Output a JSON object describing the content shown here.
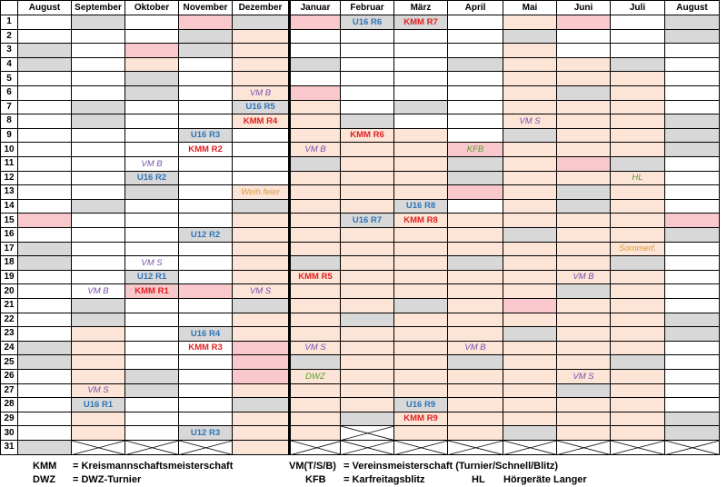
{
  "months": [
    "August",
    "September",
    "Oktober",
    "November",
    "Dezember",
    "Januar",
    "Februar",
    "März",
    "April",
    "Mai",
    "Juni",
    "Juli",
    "August"
  ],
  "colors": {
    "weekend": "#d8d8d8",
    "holiday_peach": "#fce4d6",
    "holiday_pink": "#f8c8cc",
    "blue_event": "#2e75b6",
    "red_event": "#e02020",
    "purple_event": "#7a4fb0",
    "green_event": "#5aa02c",
    "orange_event": "#d99a3a"
  },
  "shading": {
    "0": {
      "g": [
        3,
        4,
        17,
        18,
        24,
        25,
        31
      ],
      "p": [],
      "k": [
        15
      ]
    },
    "1": {
      "g": [
        1,
        7,
        8,
        14,
        21,
        22,
        28
      ],
      "p": [
        21,
        22,
        23,
        24,
        25,
        26,
        27,
        28,
        29,
        30
      ],
      "k": []
    },
    "2": {
      "g": [
        5,
        6,
        12,
        13,
        19,
        26,
        27
      ],
      "p": [
        4,
        5
      ],
      "k": [
        3,
        20
      ]
    },
    "3": {
      "g": [
        2,
        3,
        9,
        16,
        23,
        30
      ],
      "p": [
        30
      ],
      "k": [
        1,
        20
      ]
    },
    "4": {
      "g": [
        1,
        7,
        14,
        21,
        28
      ],
      "p": [
        1,
        2,
        3,
        4,
        5,
        6,
        7,
        8,
        13,
        14,
        15,
        16,
        17,
        18,
        19,
        20,
        21,
        22,
        23,
        27,
        28,
        29,
        30,
        31
      ],
      "k": [
        24,
        25,
        26
      ]
    },
    "5": {
      "g": [
        4,
        11,
        18,
        25
      ],
      "p": [
        6,
        7,
        8,
        9,
        10,
        11,
        12,
        13,
        14,
        15,
        16,
        17,
        18,
        19,
        20,
        21,
        22,
        23,
        24,
        25,
        26,
        27,
        28,
        29,
        30,
        31
      ],
      "k": [
        1,
        6
      ]
    },
    "6": {
      "g": [
        1,
        8,
        15,
        22,
        29
      ],
      "p": [
        9,
        10,
        11,
        12,
        13,
        14,
        15,
        16,
        17,
        18,
        19,
        20,
        21,
        22,
        23,
        24,
        25,
        26,
        27,
        28,
        29,
        30,
        31
      ],
      "k": []
    },
    "7": {
      "g": [
        1,
        7,
        14,
        21,
        28
      ],
      "p": [
        9,
        10,
        11,
        12,
        13,
        14,
        15,
        16,
        17,
        18,
        19,
        20,
        21,
        22,
        23,
        24,
        25,
        26,
        27,
        28,
        29,
        30,
        31
      ],
      "k": []
    },
    "8": {
      "g": [
        4,
        11,
        12,
        18,
        25
      ],
      "p": [
        15,
        16,
        17,
        18,
        19,
        20,
        21,
        22,
        23,
        24,
        25,
        26,
        27,
        28,
        29,
        30,
        31
      ],
      "k": [
        10,
        13
      ]
    },
    "9": {
      "g": [
        2,
        9,
        16,
        23,
        30
      ],
      "p": [
        1,
        2,
        3,
        4,
        5,
        6,
        7,
        8,
        9,
        10,
        11,
        12,
        13,
        14,
        15,
        16,
        17,
        18,
        19,
        20,
        21,
        22,
        23,
        24,
        25,
        26,
        27,
        28,
        29,
        30,
        31
      ],
      "k": [
        21
      ]
    },
    "10": {
      "g": [
        6,
        13,
        14,
        20,
        27
      ],
      "p": [
        4,
        5,
        6,
        7,
        8,
        9,
        10,
        11,
        12,
        13,
        14,
        15,
        16,
        17,
        18,
        19,
        20,
        21,
        22,
        23,
        24,
        25,
        26,
        27,
        28,
        29,
        30,
        31
      ],
      "k": [
        1,
        11
      ]
    },
    "11": {
      "g": [
        4,
        11,
        18,
        25
      ],
      "p": [
        4,
        5,
        6,
        7,
        8,
        9,
        10,
        11,
        12,
        13,
        14,
        15,
        16,
        17,
        18,
        19,
        20,
        21,
        22,
        23,
        24,
        25,
        26,
        27,
        28,
        29,
        30,
        31
      ],
      "k": []
    },
    "12": {
      "g": [
        1,
        2,
        8,
        9,
        10,
        16,
        22,
        23,
        29,
        30
      ],
      "p": [],
      "k": [
        15
      ]
    }
  },
  "invalid_cells": [
    {
      "month": 1,
      "day": 31
    },
    {
      "month": 2,
      "day": 31
    },
    {
      "month": 3,
      "day": 31
    },
    {
      "month": 5,
      "day": 31
    },
    {
      "month": 6,
      "day": 30
    },
    {
      "month": 6,
      "day": 31
    },
    {
      "month": 7,
      "day": 31
    },
    {
      "month": 8,
      "day": 31
    },
    {
      "month": 9,
      "day": 31
    },
    {
      "month": 10,
      "day": 31
    },
    {
      "month": 11,
      "day": 31
    },
    {
      "month": 12,
      "day": 31
    }
  ],
  "events": [
    {
      "month": 1,
      "day": 20,
      "text": "VM B",
      "color": "purple_event",
      "style": "ital"
    },
    {
      "month": 1,
      "day": 27,
      "text": "VM S",
      "color": "purple_event",
      "style": "ital"
    },
    {
      "month": 1,
      "day": 28,
      "text": "U16 R1",
      "color": "blue_event",
      "style": "bold"
    },
    {
      "month": 2,
      "day": 11,
      "text": "VM B",
      "color": "purple_event",
      "style": "ital"
    },
    {
      "month": 2,
      "day": 12,
      "text": "U16 R2",
      "color": "blue_event",
      "style": "bold"
    },
    {
      "month": 2,
      "day": 18,
      "text": "VM S",
      "color": "purple_event",
      "style": "ital"
    },
    {
      "month": 2,
      "day": 19,
      "text": "U12 R1",
      "color": "blue_event",
      "style": "bold"
    },
    {
      "month": 2,
      "day": 20,
      "text": "KMM R1",
      "color": "red_event",
      "style": "bold"
    },
    {
      "month": 3,
      "day": 9,
      "text": "U16 R3",
      "color": "blue_event",
      "style": "bold"
    },
    {
      "month": 3,
      "day": 10,
      "text": "KMM R2",
      "color": "red_event",
      "style": "bold"
    },
    {
      "month": 3,
      "day": 16,
      "text": "U12 R2",
      "color": "blue_event",
      "style": "bold"
    },
    {
      "month": 3,
      "day": 23,
      "text": "U16 R4",
      "color": "blue_event",
      "style": "bold"
    },
    {
      "month": 3,
      "day": 24,
      "text": "KMM R3",
      "color": "red_event",
      "style": "bold"
    },
    {
      "month": 3,
      "day": 30,
      "text": "U12 R3",
      "color": "blue_event",
      "style": "bold"
    },
    {
      "month": 4,
      "day": 6,
      "text": "VM B",
      "color": "purple_event",
      "style": "ital"
    },
    {
      "month": 4,
      "day": 7,
      "text": "U16 R5",
      "color": "blue_event",
      "style": "bold"
    },
    {
      "month": 4,
      "day": 8,
      "text": "KMM R4",
      "color": "red_event",
      "style": "bold"
    },
    {
      "month": 4,
      "day": 13,
      "text": "Weih.feier",
      "color": "orange_event",
      "style": "ital"
    },
    {
      "month": 4,
      "day": 20,
      "text": "VM S",
      "color": "purple_event",
      "style": "ital"
    },
    {
      "month": 5,
      "day": 10,
      "text": "VM B",
      "color": "purple_event",
      "style": "ital"
    },
    {
      "month": 5,
      "day": 19,
      "text": "KMM R5",
      "color": "red_event",
      "style": "bold"
    },
    {
      "month": 5,
      "day": 24,
      "text": "VM S",
      "color": "purple_event",
      "style": "ital"
    },
    {
      "month": 5,
      "day": 26,
      "text": "DWZ",
      "color": "green_event",
      "style": "ital"
    },
    {
      "month": 6,
      "day": 1,
      "text": "U16 R6",
      "color": "blue_event",
      "style": "bold"
    },
    {
      "month": 6,
      "day": 9,
      "text": "KMM R6",
      "color": "red_event",
      "style": "bold"
    },
    {
      "month": 6,
      "day": 15,
      "text": "U16 R7",
      "color": "blue_event",
      "style": "bold"
    },
    {
      "month": 7,
      "day": 1,
      "text": "KMM R7",
      "color": "red_event",
      "style": "bold"
    },
    {
      "month": 7,
      "day": 14,
      "text": "U16 R8",
      "color": "blue_event",
      "style": "bold"
    },
    {
      "month": 7,
      "day": 15,
      "text": "KMM R8",
      "color": "red_event",
      "style": "bold"
    },
    {
      "month": 7,
      "day": 28,
      "text": "U16 R9",
      "color": "blue_event",
      "style": "bold"
    },
    {
      "month": 7,
      "day": 29,
      "text": "KMM R9",
      "color": "red_event",
      "style": "bold"
    },
    {
      "month": 8,
      "day": 10,
      "text": "KFB",
      "color": "green_event",
      "style": "ital"
    },
    {
      "month": 8,
      "day": 24,
      "text": "VM B",
      "color": "purple_event",
      "style": "ital"
    },
    {
      "month": 9,
      "day": 8,
      "text": "VM S",
      "color": "purple_event",
      "style": "ital"
    },
    {
      "month": 10,
      "day": 19,
      "text": "VM B",
      "color": "purple_event",
      "style": "ital"
    },
    {
      "month": 10,
      "day": 26,
      "text": "VM S",
      "color": "purple_event",
      "style": "ital"
    },
    {
      "month": 11,
      "day": 12,
      "text": "HL",
      "color": "green_event",
      "style": "ital"
    },
    {
      "month": 11,
      "day": 17,
      "text": "Sommerf.",
      "color": "orange_event",
      "style": "ital"
    }
  ],
  "legend": {
    "kmm_key": "KMM",
    "kmm_text": "= Kreismannschaftsmeisterschaft",
    "dwz_key": "DWZ",
    "dwz_text": "= DWZ-Turnier",
    "vm_key": "VM(T/S/B)",
    "vm_text": "= Vereinsmeisterschaft (Turnier/Schnell/Blitz)",
    "kfb_key": "KFB",
    "kfb_text": "= Karfreitagsblitz",
    "hl_key": "HL",
    "hl_text": "Hörgeräte Langer"
  }
}
